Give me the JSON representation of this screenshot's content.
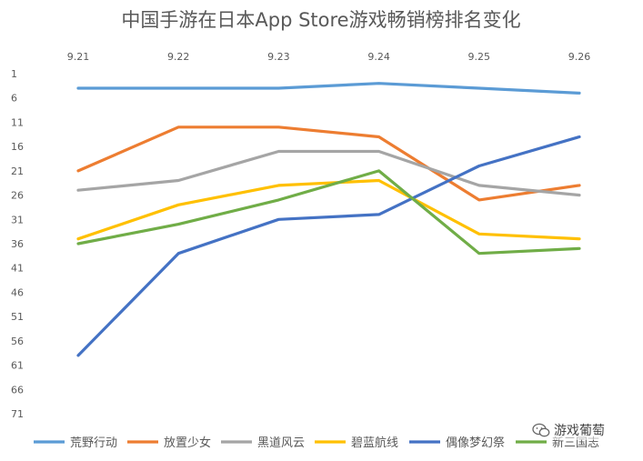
{
  "chart_data": {
    "type": "line",
    "title": "中国手游在日本App Store游戏畅销榜排名变化",
    "categories": [
      "9.21",
      "9.22",
      "9.23",
      "9.24",
      "9.25",
      "9.26"
    ],
    "y_ticks": [
      "1",
      "6",
      "11",
      "16",
      "21",
      "26",
      "31",
      "36",
      "41",
      "46",
      "51",
      "56",
      "61",
      "66",
      "71"
    ],
    "ylim": [
      1,
      71
    ],
    "y_inverted": true,
    "x_axis_position": "top",
    "grid": false,
    "legend_position": "bottom",
    "series": [
      {
        "name": "荒野行动",
        "color": "#5b9bd5",
        "values": [
          4,
          4,
          4,
          3,
          4,
          5
        ]
      },
      {
        "name": "放置少女",
        "color": "#ed7d31",
        "values": [
          21,
          12,
          12,
          14,
          27,
          24
        ]
      },
      {
        "name": "黑道风云",
        "color": "#a5a5a5",
        "values": [
          25,
          23,
          17,
          17,
          24,
          26
        ]
      },
      {
        "name": "碧蓝航线",
        "color": "#ffc000",
        "values": [
          35,
          28,
          24,
          23,
          34,
          35
        ]
      },
      {
        "name": "偶像梦幻祭",
        "color": "#4472c4",
        "values": [
          59,
          38,
          31,
          30,
          20,
          14
        ]
      },
      {
        "name": "新三国志",
        "color": "#70ad47",
        "values": [
          36,
          32,
          27,
          21,
          38,
          37
        ]
      }
    ]
  },
  "watermark": {
    "icon": "wechat-icon",
    "text": "游戏葡萄"
  }
}
